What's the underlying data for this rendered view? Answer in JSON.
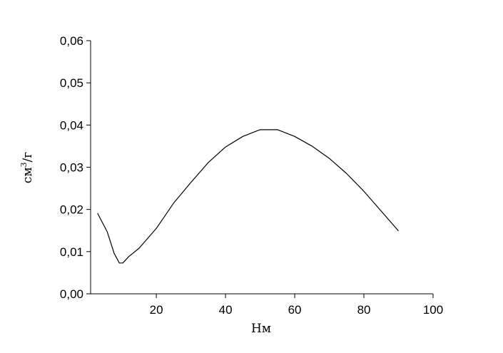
{
  "chart_data": {
    "type": "line",
    "x_label": "Нм",
    "y_label": [
      "см",
      "3",
      "/г"
    ],
    "x": [
      3,
      5.8,
      7.8,
      9.3,
      10.3,
      12,
      15,
      20,
      25,
      30,
      35,
      40,
      45,
      50,
      55,
      60,
      65,
      70,
      75,
      80,
      85,
      90
    ],
    "series": [
      {
        "color": "#000000",
        "values": [
          0.0191,
          0.0147,
          0.0096,
          0.0073,
          0.0073,
          0.0088,
          0.0108,
          0.0155,
          0.0215,
          0.0264,
          0.0311,
          0.0348,
          0.0373,
          0.0389,
          0.0389,
          0.0373,
          0.035,
          0.0321,
          0.0285,
          0.0243,
          0.0196,
          0.0149
        ]
      }
    ],
    "xlim": [
      1,
      100
    ],
    "xticks": [
      20,
      40,
      60,
      80,
      100
    ],
    "ylim": [
      0,
      0.06
    ],
    "yticks": [
      {
        "value": 0,
        "label": "0,00"
      },
      {
        "value": 0.01,
        "label": "0,01"
      },
      {
        "value": 0.02,
        "label": "0,02"
      },
      {
        "value": 0.03,
        "label": "0,03"
      },
      {
        "value": 0.04,
        "label": "0,04"
      },
      {
        "value": 0.05,
        "label": "0,05"
      },
      {
        "value": 0.06,
        "label": "0,06"
      }
    ]
  }
}
